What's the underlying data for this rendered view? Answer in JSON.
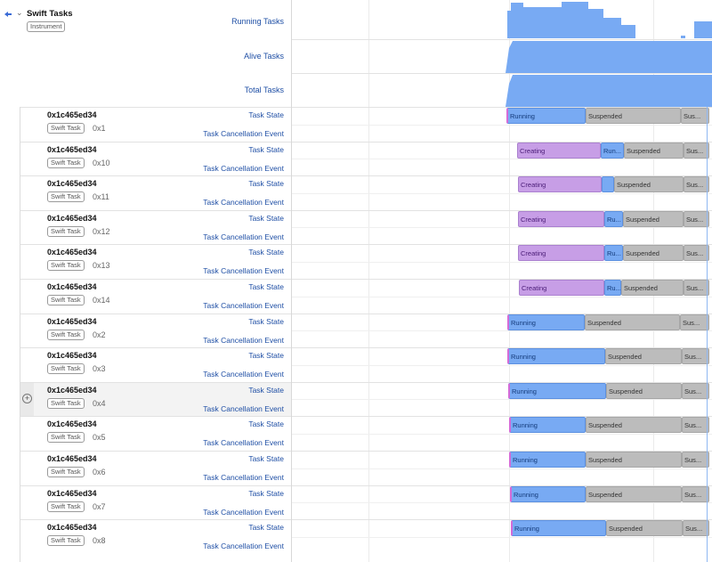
{
  "instrument": {
    "title": "Swift Tasks",
    "badge": "Instrument",
    "tracks": [
      "Running Tasks",
      "Alive Tasks",
      "Total Tasks"
    ]
  },
  "task_badge": "Swift Task",
  "tasks": [
    {
      "addr": "0x1c465ed34",
      "id": "0x1",
      "state_label": "Task State",
      "cancel_label": "Task Cancellation Event",
      "segments": [
        {
          "kind": "running",
          "label": "Running"
        },
        {
          "kind": "suspended",
          "label": "Suspended"
        },
        {
          "kind": "suspended",
          "label": "Sus..."
        }
      ]
    },
    {
      "addr": "0x1c465ed34",
      "id": "0x10",
      "state_label": "Task State",
      "cancel_label": "Task Cancellation Event",
      "segments": [
        {
          "kind": "creating",
          "label": "Creating"
        },
        {
          "kind": "running",
          "label": "Run..."
        },
        {
          "kind": "suspended",
          "label": "Suspended"
        },
        {
          "kind": "suspended",
          "label": "Sus..."
        }
      ]
    },
    {
      "addr": "0x1c465ed34",
      "id": "0x11",
      "state_label": "Task State",
      "cancel_label": "Task Cancellation Event",
      "segments": [
        {
          "kind": "creating",
          "label": "Creating"
        },
        {
          "kind": "running",
          "label": ""
        },
        {
          "kind": "suspended",
          "label": "Suspended"
        },
        {
          "kind": "suspended",
          "label": "Sus..."
        }
      ]
    },
    {
      "addr": "0x1c465ed34",
      "id": "0x12",
      "state_label": "Task State",
      "cancel_label": "Task Cancellation Event",
      "segments": [
        {
          "kind": "creating",
          "label": "Creating"
        },
        {
          "kind": "running",
          "label": "Ru..."
        },
        {
          "kind": "suspended",
          "label": "Suspended"
        },
        {
          "kind": "suspended",
          "label": "Sus..."
        }
      ]
    },
    {
      "addr": "0x1c465ed34",
      "id": "0x13",
      "state_label": "Task State",
      "cancel_label": "Task Cancellation Event",
      "segments": [
        {
          "kind": "creating",
          "label": "Creating"
        },
        {
          "kind": "running",
          "label": "Ru..."
        },
        {
          "kind": "suspended",
          "label": "Suspended"
        },
        {
          "kind": "suspended",
          "label": "Sus..."
        }
      ]
    },
    {
      "addr": "0x1c465ed34",
      "id": "0x14",
      "state_label": "Task State",
      "cancel_label": "Task Cancellation Event",
      "segments": [
        {
          "kind": "creating",
          "label": "Creating"
        },
        {
          "kind": "running",
          "label": "Ru..."
        },
        {
          "kind": "suspended",
          "label": "Suspended"
        },
        {
          "kind": "suspended",
          "label": "Sus..."
        }
      ]
    },
    {
      "addr": "0x1c465ed34",
      "id": "0x2",
      "state_label": "Task State",
      "cancel_label": "Task Cancellation Event",
      "segments": [
        {
          "kind": "running",
          "label": "Running"
        },
        {
          "kind": "suspended",
          "label": "Suspended"
        },
        {
          "kind": "suspended",
          "label": "Sus..."
        }
      ]
    },
    {
      "addr": "0x1c465ed34",
      "id": "0x3",
      "state_label": "Task State",
      "cancel_label": "Task Cancellation Event",
      "segments": [
        {
          "kind": "running",
          "label": "Running"
        },
        {
          "kind": "suspended",
          "label": "Suspended"
        },
        {
          "kind": "suspended",
          "label": "Sus..."
        }
      ]
    },
    {
      "addr": "0x1c465ed34",
      "id": "0x4",
      "state_label": "Task State",
      "cancel_label": "Task Cancellation Event",
      "highlighted": true,
      "segments": [
        {
          "kind": "running",
          "label": "Running"
        },
        {
          "kind": "suspended",
          "label": "Suspended"
        },
        {
          "kind": "suspended",
          "label": "Sus..."
        }
      ]
    },
    {
      "addr": "0x1c465ed34",
      "id": "0x5",
      "state_label": "Task State",
      "cancel_label": "Task Cancellation Event",
      "segments": [
        {
          "kind": "running",
          "label": "Running"
        },
        {
          "kind": "suspended",
          "label": "Suspended"
        },
        {
          "kind": "suspended",
          "label": "Sus..."
        }
      ]
    },
    {
      "addr": "0x1c465ed34",
      "id": "0x6",
      "state_label": "Task State",
      "cancel_label": "Task Cancellation Event",
      "segments": [
        {
          "kind": "running",
          "label": "Running"
        },
        {
          "kind": "suspended",
          "label": "Suspended"
        },
        {
          "kind": "suspended",
          "label": "Sus..."
        }
      ]
    },
    {
      "addr": "0x1c465ed34",
      "id": "0x7",
      "state_label": "Task State",
      "cancel_label": "Task Cancellation Event",
      "segments": [
        {
          "kind": "running",
          "label": "Running"
        },
        {
          "kind": "suspended",
          "label": "Suspended"
        },
        {
          "kind": "suspended",
          "label": "Sus..."
        }
      ]
    },
    {
      "addr": "0x1c465ed34",
      "id": "0x8",
      "state_label": "Task State",
      "cancel_label": "Task Cancellation Event",
      "segments": [
        {
          "kind": "running",
          "label": "Running"
        },
        {
          "kind": "suspended",
          "label": "Suspended"
        },
        {
          "kind": "suspended",
          "label": "Sus..."
        }
      ]
    }
  ],
  "colors": {
    "running": "#78aaf3",
    "suspended": "#bcbcbc",
    "creating": "#c79ee6",
    "link": "#1f4fa5"
  }
}
